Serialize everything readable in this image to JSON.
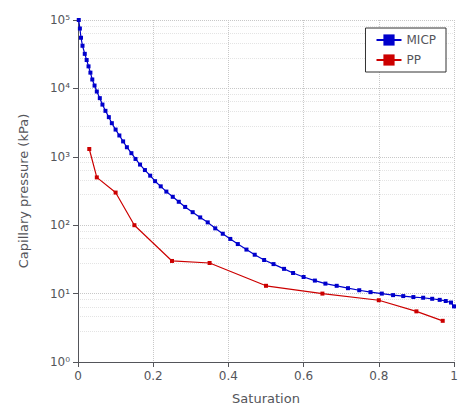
{
  "chart_data": {
    "type": "line",
    "xlabel": "Saturation",
    "ylabel": "Capillary pressure (kPa)",
    "log": "y",
    "grid": true,
    "legend": "upper right",
    "marker": "square",
    "xlim": [
      0,
      1
    ],
    "xticks": [
      0,
      0.2,
      0.4,
      0.6,
      0.8,
      1
    ],
    "ylim": [
      1,
      100000
    ],
    "yticks": [
      {
        "value": 1,
        "label": "10⁰"
      },
      {
        "value": 10,
        "label": "10¹"
      },
      {
        "value": 100,
        "label": "10²"
      },
      {
        "value": 1000,
        "label": "10³"
      },
      {
        "value": 10000,
        "label": "10⁴"
      },
      {
        "value": 100000,
        "label": "10⁵"
      }
    ],
    "series": [
      {
        "name": "MICP",
        "color": "#0000cc",
        "x": [
          0.002,
          0.005,
          0.008,
          0.012,
          0.018,
          0.023,
          0.028,
          0.033,
          0.038,
          0.044,
          0.05,
          0.058,
          0.065,
          0.073,
          0.082,
          0.09,
          0.1,
          0.11,
          0.12,
          0.13,
          0.142,
          0.153,
          0.165,
          0.178,
          0.192,
          0.205,
          0.22,
          0.235,
          0.252,
          0.268,
          0.285,
          0.305,
          0.325,
          0.345,
          0.365,
          0.385,
          0.405,
          0.425,
          0.448,
          0.47,
          0.495,
          0.52,
          0.548,
          0.572,
          0.6,
          0.63,
          0.658,
          0.688,
          0.718,
          0.748,
          0.778,
          0.808,
          0.838,
          0.865,
          0.892,
          0.918,
          0.942,
          0.962,
          0.978,
          0.992,
          1.0
        ],
        "values": [
          100000,
          75000,
          55000,
          42000,
          32000,
          26000,
          21000,
          17000,
          13500,
          11000,
          9000,
          7200,
          5800,
          4700,
          3800,
          3100,
          2500,
          2050,
          1680,
          1380,
          1130,
          930,
          770,
          640,
          530,
          440,
          370,
          310,
          260,
          220,
          185,
          155,
          130,
          110,
          90,
          75,
          63,
          53,
          44,
          37,
          31,
          27,
          23,
          20,
          17.5,
          15.5,
          14,
          13,
          12,
          11.2,
          10.5,
          10,
          9.5,
          9.2,
          8.9,
          8.7,
          8.4,
          8.1,
          7.8,
          7.4,
          6.5
        ]
      },
      {
        "name": "PP",
        "color": "#cc0000",
        "x": [
          0.03,
          0.05,
          0.1,
          0.15,
          0.25,
          0.35,
          0.5,
          0.65,
          0.8,
          0.9,
          0.97
        ],
        "values": [
          1300,
          500,
          300,
          100,
          30,
          28,
          13,
          10,
          8,
          5.5,
          4.0
        ]
      }
    ]
  }
}
